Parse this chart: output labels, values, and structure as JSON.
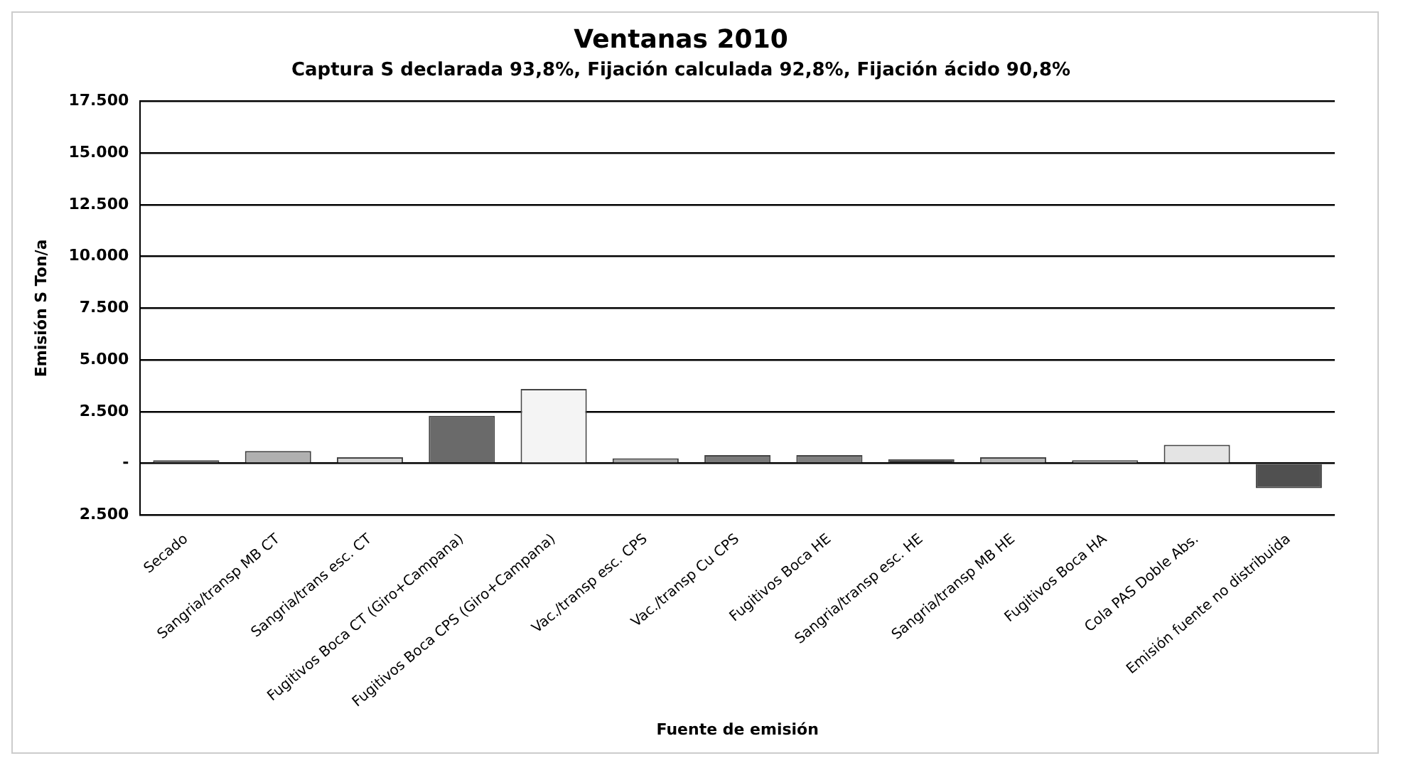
{
  "chart_data": {
    "type": "bar",
    "title": "Ventanas 2010",
    "subtitle": "Captura S declarada 93,8%, Fijación calculada 92,8%, Fijación ácido 90,8%",
    "xlabel": "Fuente de emisión",
    "ylabel": "Emisión S Ton/a",
    "categories": [
      "Secado",
      "Sangria/transp MB CT",
      "Sangria/trans esc. CT",
      "Fugitivos Boca CT (Giro+Campana)",
      "Fugitivos Boca CPS (Giro+Campana)",
      "Vac./transp esc. CPS",
      "Vac./transp Cu CPS",
      "Fugitivos Boca HE",
      "Sangria/transp esc. HE",
      "Sangria/transp MB HE",
      "Fugitivos Boca HA",
      "Cola PAS Doble Abs.",
      "Emisión fuente no distribuida"
    ],
    "values": [
      150,
      600,
      300,
      2300,
      3600,
      250,
      400,
      400,
      200,
      300,
      150,
      900,
      -1200
    ],
    "colors": [
      "#8c8c8c",
      "#b0b0b0",
      "#d4d4d4",
      "#6a6a6a",
      "#f4f4f4",
      "#a8a8a8",
      "#7a7a7a",
      "#808080",
      "#404040",
      "#b8b8b8",
      "#dcdcdc",
      "#e4e4e4",
      "#505050"
    ],
    "ylim": [
      -2500,
      17500
    ],
    "yticks": [
      {
        "value": -2500,
        "label": "2.500"
      },
      {
        "value": 0,
        "label": "-"
      },
      {
        "value": 2500,
        "label": "2.500"
      },
      {
        "value": 5000,
        "label": "5.000"
      },
      {
        "value": 7500,
        "label": "7.500"
      },
      {
        "value": 10000,
        "label": "10.000"
      },
      {
        "value": 12500,
        "label": "12.500"
      },
      {
        "value": 15000,
        "label": "15.000"
      },
      {
        "value": 17500,
        "label": "17.500"
      }
    ],
    "grid": "y",
    "legend": false
  }
}
